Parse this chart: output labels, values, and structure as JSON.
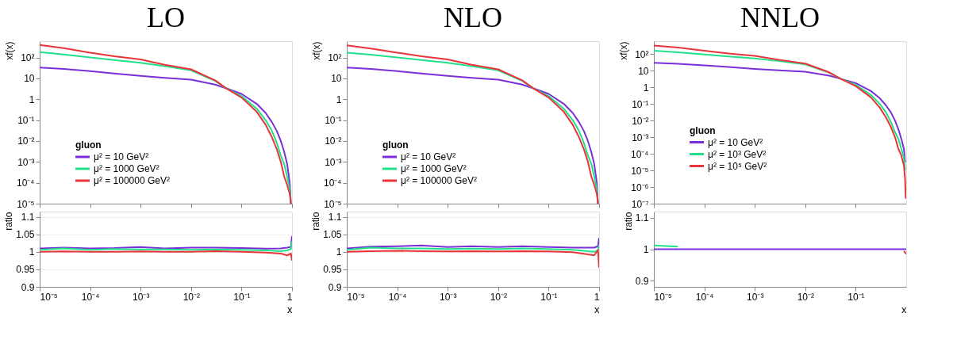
{
  "chart_data": [
    {
      "type": "line",
      "title": "LO",
      "ylabel": "xf(x)",
      "legend_title": "gluon",
      "legend": "bottom left",
      "log": "xy",
      "tick_labels": "y",
      "xlim": [
        1e-05,
        1
      ],
      "ylim": [
        1e-05,
        600
      ],
      "xticks": [
        {
          "value": 1e-05,
          "label": null
        },
        {
          "value": 0.0001,
          "label": null
        },
        {
          "value": 0.001,
          "label": null
        },
        {
          "value": 0.01,
          "label": null
        },
        {
          "value": 0.1,
          "label": null
        },
        {
          "value": 1,
          "label": null
        }
      ],
      "yticks": [
        {
          "value": 1e-05,
          "label": "10⁻⁵"
        },
        {
          "value": 0.0001,
          "label": "10⁻⁴"
        },
        {
          "value": 0.001,
          "label": "10⁻³"
        },
        {
          "value": 0.01,
          "label": "10⁻²"
        },
        {
          "value": 0.1,
          "label": "10⁻¹"
        },
        1,
        10,
        {
          "value": 100,
          "label": "10²"
        }
      ],
      "x": [
        1e-05,
        3e-05,
        0.0001,
        0.0003,
        0.001,
        0.003,
        0.01,
        0.03,
        0.05,
        0.1,
        0.2,
        0.3,
        0.4,
        0.5,
        0.6,
        0.7,
        0.8,
        0.9,
        0.95
      ],
      "series": [
        {
          "name": "μ² = 10 GeV²",
          "color": "#7b2fd8",
          "values": [
            33,
            28,
            22,
            17,
            13,
            10.5,
            8.7,
            5,
            3.3,
            1.8,
            0.6,
            0.22,
            0.08,
            0.03,
            0.01,
            0.003,
            0.0008,
            0.0001,
            1e-05
          ]
        },
        {
          "name": "μ² = 1000 GeV²",
          "color": "#22e08a",
          "values": [
            180,
            140,
            100,
            75,
            56,
            38,
            24,
            7.5,
            3.3,
            1.4,
            0.35,
            0.1,
            0.03,
            0.008,
            0.002,
            0.0008,
            0.0002,
            5e-05,
            1e-05
          ]
        },
        {
          "name": "μ² = 100000 GeV²",
          "color": "#e8343a",
          "values": [
            400,
            280,
            170,
            115,
            80,
            45,
            27,
            8,
            3.3,
            1.2,
            0.25,
            0.06,
            0.015,
            0.004,
            0.001,
            0.0002,
            8e-05,
            3e-05,
            1e-05
          ]
        }
      ]
    },
    {
      "type": "line",
      "title": "NLO",
      "ylabel": "xf(x)",
      "legend_title": "gluon",
      "legend": "bottom left",
      "log": "xy",
      "tick_labels": "y",
      "xlim": [
        1e-05,
        1
      ],
      "ylim": [
        1e-05,
        600
      ],
      "xticks": [
        {
          "value": 1e-05,
          "label": null
        },
        {
          "value": 0.0001,
          "label": null
        },
        {
          "value": 0.001,
          "label": null
        },
        {
          "value": 0.01,
          "label": null
        },
        {
          "value": 0.1,
          "label": null
        },
        {
          "value": 1,
          "label": null
        }
      ],
      "yticks": [
        {
          "value": 1e-05,
          "label": "10⁻⁵"
        },
        {
          "value": 0.0001,
          "label": "10⁻⁴"
        },
        {
          "value": 0.001,
          "label": "10⁻³"
        },
        {
          "value": 0.01,
          "label": "10⁻²"
        },
        {
          "value": 0.1,
          "label": "10⁻¹"
        },
        1,
        10,
        {
          "value": 100,
          "label": "10²"
        }
      ],
      "x": [
        1e-05,
        3e-05,
        0.0001,
        0.0003,
        0.001,
        0.003,
        0.01,
        0.03,
        0.05,
        0.1,
        0.2,
        0.3,
        0.4,
        0.5,
        0.6,
        0.7,
        0.8,
        0.9,
        0.95
      ],
      "series": [
        {
          "name": "μ² = 10 GeV²",
          "color": "#7b2fd8",
          "values": [
            33,
            28,
            22,
            17,
            13,
            10.5,
            8.7,
            5,
            3.3,
            1.8,
            0.6,
            0.22,
            0.08,
            0.03,
            0.01,
            0.003,
            0.0008,
            0.0001,
            1e-05
          ]
        },
        {
          "name": "μ² = 1000 GeV²",
          "color": "#22e08a",
          "values": [
            170,
            135,
            100,
            75,
            56,
            38,
            24,
            7.5,
            3.3,
            1.4,
            0.35,
            0.1,
            0.03,
            0.008,
            0.002,
            0.0008,
            0.0002,
            5e-05,
            1e-05
          ]
        },
        {
          "name": "μ² = 100000 GeV²",
          "color": "#e8343a",
          "values": [
            380,
            270,
            170,
            115,
            80,
            45,
            27,
            8,
            3.3,
            1.2,
            0.25,
            0.06,
            0.015,
            0.004,
            0.001,
            0.0002,
            8e-05,
            3e-05,
            1e-05
          ]
        }
      ]
    },
    {
      "type": "line",
      "title": "NNLO",
      "ylabel": "xf(x)",
      "legend_title": "gluon",
      "legend": "left",
      "log": "xy",
      "tick_labels": "y",
      "xlim": [
        1e-05,
        1
      ],
      "ylim": [
        1e-07,
        600
      ],
      "xticks": [
        {
          "value": 1e-05,
          "label": null
        },
        {
          "value": 0.0001,
          "label": null
        },
        {
          "value": 0.001,
          "label": null
        },
        {
          "value": 0.01,
          "label": null
        },
        {
          "value": 0.1,
          "label": null
        }
      ],
      "yticks": [
        {
          "value": 1e-07,
          "label": "10⁻⁷"
        },
        {
          "value": 1e-06,
          "label": "10⁻⁶"
        },
        {
          "value": 1e-05,
          "label": "10⁻⁵"
        },
        {
          "value": 0.0001,
          "label": "10⁻⁴"
        },
        {
          "value": 0.001,
          "label": "10⁻³"
        },
        {
          "value": 0.01,
          "label": "10⁻²"
        },
        {
          "value": 0.1,
          "label": "10⁻¹"
        },
        1,
        10,
        {
          "value": 100,
          "label": "10²"
        }
      ],
      "x": [
        1e-05,
        3e-05,
        0.0001,
        0.0003,
        0.001,
        0.003,
        0.01,
        0.03,
        0.05,
        0.1,
        0.2,
        0.3,
        0.4,
        0.5,
        0.6,
        0.7,
        0.8,
        0.9,
        0.95,
        0.98
      ],
      "series": [
        {
          "name": "μ² = 10 GeV²",
          "color": "#7b2fd8",
          "values": [
            30,
            26,
            21,
            17,
            13,
            10.5,
            8.7,
            5,
            3.3,
            1.8,
            0.6,
            0.22,
            0.08,
            0.03,
            0.01,
            0.003,
            0.0008,
            0.0002,
            3e-05,
            null
          ]
        },
        {
          "name": "μ² = 10³ GeV²",
          "color": "#22e08a",
          "values": [
            160,
            130,
            95,
            72,
            55,
            38,
            24,
            7.5,
            3.3,
            1.4,
            0.35,
            0.1,
            0.03,
            0.008,
            0.002,
            0.0008,
            0.0002,
            6e-05,
            1e-05,
            null
          ]
        },
        {
          "name": "μ² = 10⁵ GeV²",
          "color": "#e8343a",
          "values": [
            330,
            250,
            160,
            110,
            78,
            45,
            27,
            8,
            3.3,
            1.2,
            0.25,
            0.06,
            0.015,
            0.004,
            0.001,
            0.0002,
            8e-05,
            2e-05,
            3e-06,
            2e-07
          ]
        }
      ]
    },
    {
      "type": "line",
      "ylabel": "ratio",
      "xlabel": "x",
      "log": "x",
      "grid": "y",
      "xlim": [
        1e-05,
        1
      ],
      "ylim": [
        0.9,
        1.115
      ],
      "xticks": [
        {
          "value": 1e-05,
          "label": "10⁻⁵"
        },
        {
          "value": 0.0001,
          "label": "10⁻⁴"
        },
        {
          "value": 0.001,
          "label": "10⁻³"
        },
        {
          "value": 0.01,
          "label": "10⁻²"
        },
        {
          "value": 0.1,
          "label": "10⁻¹"
        },
        1
      ],
      "yticks": [
        0.9,
        0.95,
        1,
        1.05,
        1.1
      ],
      "x": [
        1e-05,
        3e-05,
        0.0001,
        0.0003,
        0.001,
        0.003,
        0.01,
        0.03,
        0.1,
        0.3,
        0.6,
        0.8,
        0.95,
        1
      ],
      "series": [
        {
          "color": "#7b2fd8",
          "values": [
            1.01,
            1.012,
            1.01,
            1.011,
            1.014,
            1.01,
            1.012,
            1.012,
            1.011,
            1.009,
            1.01,
            1.012,
            1.014,
            1.045
          ]
        },
        {
          "color": "#22e08a",
          "values": [
            1.006,
            1.01,
            1.006,
            1.008,
            1.007,
            1.007,
            1.006,
            1.007,
            1.006,
            1.004,
            1.002,
            1.004,
            1.008,
            1.03
          ]
        },
        {
          "color": "#e8343a",
          "values": [
            1.0,
            1.001,
            1.0,
            1.0,
            1.001,
            1.0,
            1.0,
            1.002,
            1.0,
            0.998,
            0.995,
            0.99,
            0.995,
            0.975
          ]
        }
      ]
    },
    {
      "type": "line",
      "ylabel": "ratio",
      "xlabel": "x",
      "log": "x",
      "grid": "y",
      "xlim": [
        1e-05,
        1
      ],
      "ylim": [
        0.9,
        1.115
      ],
      "xticks": [
        {
          "value": 1e-05,
          "label": "10⁻⁵"
        },
        {
          "value": 0.0001,
          "label": "10⁻⁴"
        },
        {
          "value": 0.001,
          "label": "10⁻³"
        },
        {
          "value": 0.01,
          "label": "10⁻²"
        },
        {
          "value": 0.1,
          "label": "10⁻¹"
        },
        1
      ],
      "yticks": [
        0.9,
        0.95,
        1,
        1.05,
        1.1
      ],
      "x": [
        1e-05,
        3e-05,
        0.0001,
        0.0003,
        0.001,
        0.003,
        0.01,
        0.03,
        0.1,
        0.3,
        0.6,
        0.8,
        0.95,
        1
      ],
      "series": [
        {
          "color": "#7b2fd8",
          "values": [
            1.01,
            1.015,
            1.016,
            1.018,
            1.014,
            1.016,
            1.014,
            1.016,
            1.014,
            1.012,
            1.012,
            1.012,
            1.016,
            1.04
          ]
        },
        {
          "color": "#22e08a",
          "values": [
            1.006,
            1.012,
            1.01,
            1.01,
            1.008,
            1.009,
            1.008,
            1.01,
            1.008,
            1.006,
            1.002,
            1.0,
            1.005,
            1.02
          ]
        },
        {
          "color": "#e8343a",
          "values": [
            1.0,
            1.002,
            1.003,
            1.002,
            1.001,
            1.002,
            1.001,
            1.002,
            1.001,
            0.999,
            0.993,
            0.99,
            1.005,
            0.955
          ]
        }
      ]
    },
    {
      "type": "line",
      "ylabel": "ratio",
      "xlabel": "x",
      "log": "x",
      "xlim": [
        1e-05,
        1
      ],
      "ylim": [
        0.88,
        1.12
      ],
      "xticks": [
        {
          "value": 1e-05,
          "label": "10⁻⁵"
        },
        {
          "value": 0.0001,
          "label": "10⁻⁴"
        },
        {
          "value": 0.001,
          "label": "10⁻³"
        },
        {
          "value": 0.01,
          "label": "10⁻²"
        },
        {
          "value": 0.1,
          "label": "10⁻¹"
        }
      ],
      "yticks": [
        0.9,
        1,
        1.1
      ],
      "x": [
        1e-05,
        3e-05,
        0.0001,
        0.001,
        0.01,
        0.1,
        0.5,
        0.9,
        1
      ],
      "series": [
        {
          "color": "#22e08a",
          "values": [
            1.012,
            1.008,
            null,
            null,
            null,
            null,
            null,
            null,
            null
          ]
        },
        {
          "color": "#e8343a",
          "values": [
            null,
            null,
            null,
            null,
            null,
            null,
            null,
            0.994,
            0.985
          ]
        },
        {
          "color": "#7b2fd8",
          "values": [
            1.0,
            1.0,
            1.0,
            1.0,
            1.0,
            1.0,
            1.0,
            1.0,
            1.0
          ]
        }
      ]
    }
  ]
}
